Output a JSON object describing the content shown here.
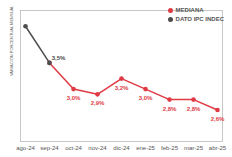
{
  "chart_data": {
    "type": "line",
    "categories": [
      "ago-24",
      "sep-24",
      "oct-24",
      "nov-24",
      "dic-24",
      "ene-25",
      "feb-25",
      "mar-25",
      "abr-25"
    ],
    "series": [
      {
        "name": "MEDIANA",
        "color": "#e03a45",
        "values": [
          null,
          3.5,
          3.0,
          2.9,
          3.2,
          3.0,
          2.8,
          2.8,
          2.6
        ],
        "value_labels": [
          null,
          null,
          "3,0%",
          "2,9%",
          "3,2%",
          "3,0%",
          "2,8%",
          "2,8%",
          "2,6%"
        ]
      },
      {
        "name": "DATO IPC INDEC",
        "color": "#4d4d4d",
        "values": [
          4.2,
          3.5,
          null,
          null,
          null,
          null,
          null,
          null,
          null
        ],
        "value_labels": [
          null,
          "3,5%",
          null,
          null,
          null,
          null,
          null,
          null,
          null
        ]
      }
    ],
    "ylabel": "VARIACIÓN PORCENTUAL MENSUAL",
    "ylim": [
      2,
      4.5
    ],
    "tick_labels": "x",
    "data_labels": true,
    "legend": "top-right",
    "marker": "circle"
  }
}
